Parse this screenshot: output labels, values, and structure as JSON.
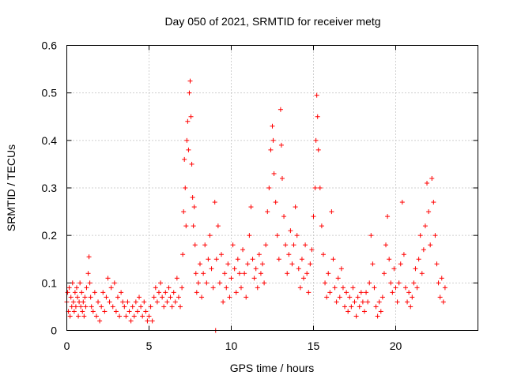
{
  "chart_data": {
    "type": "scatter",
    "title": "Day 050 of 2021, SRMTID for receiver metg",
    "xlabel": "GPS time / hours",
    "ylabel": "SRMTID / TECUs",
    "xlim": [
      0,
      25
    ],
    "ylim": [
      0,
      0.6
    ],
    "xticks": [
      0,
      5,
      10,
      15,
      20
    ],
    "xtick_labels": [
      "0",
      "5",
      "10",
      "15",
      "20"
    ],
    "yticks": [
      0,
      0.1,
      0.2,
      0.3,
      0.4,
      0.5,
      0.6
    ],
    "ytick_labels": [
      "0",
      "0.1",
      "0.2",
      "0.3",
      "0.4",
      "0.5",
      "0.6"
    ],
    "grid": true,
    "marker": "+",
    "color": "#ff0000",
    "series": [
      {
        "name": "SRMTID",
        "points": [
          [
            0.0,
            0.06
          ],
          [
            0.05,
            0.08
          ],
          [
            0.1,
            0.04
          ],
          [
            0.15,
            0.09
          ],
          [
            0.2,
            0.03
          ],
          [
            0.25,
            0.07
          ],
          [
            0.3,
            0.05
          ],
          [
            0.35,
            0.1
          ],
          [
            0.4,
            0.06
          ],
          [
            0.45,
            0.04
          ],
          [
            0.5,
            0.08
          ],
          [
            0.55,
            0.05
          ],
          [
            0.6,
            0.09
          ],
          [
            0.65,
            0.07
          ],
          [
            0.7,
            0.03
          ],
          [
            0.75,
            0.06
          ],
          [
            0.8,
            0.1
          ],
          [
            0.85,
            0.05
          ],
          [
            0.9,
            0.08
          ],
          [
            0.95,
            0.04
          ],
          [
            1.0,
            0.06
          ],
          [
            1.05,
            0.03
          ],
          [
            1.1,
            0.07
          ],
          [
            1.15,
            0.05
          ],
          [
            1.2,
            0.09
          ],
          [
            1.3,
            0.12
          ],
          [
            1.35,
            0.155
          ],
          [
            1.4,
            0.1
          ],
          [
            1.45,
            0.07
          ],
          [
            1.5,
            0.05
          ],
          [
            1.6,
            0.04
          ],
          [
            1.7,
            0.08
          ],
          [
            1.8,
            0.03
          ],
          [
            1.9,
            0.06
          ],
          [
            2.0,
            0.02
          ],
          [
            2.1,
            0.05
          ],
          [
            2.2,
            0.08
          ],
          [
            2.3,
            0.04
          ],
          [
            2.4,
            0.07
          ],
          [
            2.5,
            0.11
          ],
          [
            2.6,
            0.06
          ],
          [
            2.7,
            0.09
          ],
          [
            2.8,
            0.05
          ],
          [
            2.9,
            0.1
          ],
          [
            3.0,
            0.04
          ],
          [
            3.1,
            0.07
          ],
          [
            3.2,
            0.03
          ],
          [
            3.3,
            0.08
          ],
          [
            3.4,
            0.06
          ],
          [
            3.5,
            0.05
          ],
          [
            3.6,
            0.03
          ],
          [
            3.7,
            0.06
          ],
          [
            3.8,
            0.04
          ],
          [
            3.9,
            0.02
          ],
          [
            4.0,
            0.05
          ],
          [
            4.1,
            0.03
          ],
          [
            4.2,
            0.06
          ],
          [
            4.3,
            0.04
          ],
          [
            4.4,
            0.07
          ],
          [
            4.5,
            0.05
          ],
          [
            4.6,
            0.03
          ],
          [
            4.7,
            0.06
          ],
          [
            4.8,
            0.04
          ],
          [
            4.9,
            0.02
          ],
          [
            5.0,
            0.03
          ],
          [
            5.1,
            0.05
          ],
          [
            5.2,
            0.02
          ],
          [
            5.3,
            0.07
          ],
          [
            5.4,
            0.09
          ],
          [
            5.5,
            0.06
          ],
          [
            5.6,
            0.08
          ],
          [
            5.7,
            0.1
          ],
          [
            5.8,
            0.07
          ],
          [
            5.9,
            0.05
          ],
          [
            6.0,
            0.08
          ],
          [
            6.1,
            0.06
          ],
          [
            6.2,
            0.09
          ],
          [
            6.3,
            0.07
          ],
          [
            6.4,
            0.05
          ],
          [
            6.5,
            0.08
          ],
          [
            6.6,
            0.06
          ],
          [
            6.7,
            0.11
          ],
          [
            6.8,
            0.07
          ],
          [
            6.9,
            0.05
          ],
          [
            7.0,
            0.09
          ],
          [
            7.05,
            0.16
          ],
          [
            7.1,
            0.25
          ],
          [
            7.15,
            0.36
          ],
          [
            7.2,
            0.3
          ],
          [
            7.25,
            0.22
          ],
          [
            7.3,
            0.4
          ],
          [
            7.35,
            0.44
          ],
          [
            7.4,
            0.38
          ],
          [
            7.45,
            0.5
          ],
          [
            7.5,
            0.525
          ],
          [
            7.55,
            0.45
          ],
          [
            7.6,
            0.35
          ],
          [
            7.65,
            0.28
          ],
          [
            7.7,
            0.22
          ],
          [
            7.75,
            0.26
          ],
          [
            7.8,
            0.18
          ],
          [
            7.85,
            0.12
          ],
          [
            7.9,
            0.08
          ],
          [
            8.0,
            0.1
          ],
          [
            8.1,
            0.14
          ],
          [
            8.2,
            0.07
          ],
          [
            8.3,
            0.12
          ],
          [
            8.4,
            0.18
          ],
          [
            8.5,
            0.1
          ],
          [
            8.6,
            0.15
          ],
          [
            8.7,
            0.2
          ],
          [
            8.8,
            0.13
          ],
          [
            8.9,
            0.09
          ],
          [
            9.0,
            0.27
          ],
          [
            9.05,
            0.0
          ],
          [
            9.1,
            0.15
          ],
          [
            9.2,
            0.22
          ],
          [
            9.3,
            0.1
          ],
          [
            9.4,
            0.16
          ],
          [
            9.5,
            0.06
          ],
          [
            9.6,
            0.12
          ],
          [
            9.7,
            0.09
          ],
          [
            9.8,
            0.14
          ],
          [
            9.9,
            0.07
          ],
          [
            10.0,
            0.11
          ],
          [
            10.1,
            0.18
          ],
          [
            10.2,
            0.13
          ],
          [
            10.3,
            0.08
          ],
          [
            10.4,
            0.15
          ],
          [
            10.5,
            0.12
          ],
          [
            10.6,
            0.09
          ],
          [
            10.7,
            0.17
          ],
          [
            10.8,
            0.12
          ],
          [
            10.9,
            0.07
          ],
          [
            11.0,
            0.14
          ],
          [
            11.1,
            0.2
          ],
          [
            11.2,
            0.26
          ],
          [
            11.3,
            0.15
          ],
          [
            11.4,
            0.11
          ],
          [
            11.5,
            0.13
          ],
          [
            11.6,
            0.09
          ],
          [
            11.7,
            0.16
          ],
          [
            11.8,
            0.12
          ],
          [
            11.9,
            0.14
          ],
          [
            12.0,
            0.1
          ],
          [
            12.1,
            0.18
          ],
          [
            12.2,
            0.25
          ],
          [
            12.3,
            0.3
          ],
          [
            12.4,
            0.38
          ],
          [
            12.5,
            0.43
          ],
          [
            12.55,
            0.4
          ],
          [
            12.6,
            0.33
          ],
          [
            12.7,
            0.27
          ],
          [
            12.8,
            0.2
          ],
          [
            12.9,
            0.15
          ],
          [
            13.0,
            0.465
          ],
          [
            13.05,
            0.39
          ],
          [
            13.1,
            0.32
          ],
          [
            13.2,
            0.24
          ],
          [
            13.3,
            0.18
          ],
          [
            13.4,
            0.12
          ],
          [
            13.5,
            0.16
          ],
          [
            13.6,
            0.21
          ],
          [
            13.7,
            0.14
          ],
          [
            13.8,
            0.18
          ],
          [
            13.9,
            0.26
          ],
          [
            14.0,
            0.2
          ],
          [
            14.1,
            0.13
          ],
          [
            14.2,
            0.09
          ],
          [
            14.3,
            0.15
          ],
          [
            14.4,
            0.11
          ],
          [
            14.5,
            0.18
          ],
          [
            14.6,
            0.12
          ],
          [
            14.7,
            0.08
          ],
          [
            14.8,
            0.14
          ],
          [
            14.9,
            0.17
          ],
          [
            15.0,
            0.24
          ],
          [
            15.1,
            0.3
          ],
          [
            15.15,
            0.4
          ],
          [
            15.2,
            0.495
          ],
          [
            15.25,
            0.45
          ],
          [
            15.3,
            0.38
          ],
          [
            15.4,
            0.3
          ],
          [
            15.5,
            0.22
          ],
          [
            15.6,
            0.16
          ],
          [
            15.7,
            0.1
          ],
          [
            15.8,
            0.07
          ],
          [
            15.9,
            0.12
          ],
          [
            16.0,
            0.08
          ],
          [
            16.1,
            0.25
          ],
          [
            16.2,
            0.15
          ],
          [
            16.3,
            0.09
          ],
          [
            16.4,
            0.06
          ],
          [
            16.5,
            0.11
          ],
          [
            16.6,
            0.07
          ],
          [
            16.7,
            0.13
          ],
          [
            16.8,
            0.09
          ],
          [
            16.9,
            0.05
          ],
          [
            17.0,
            0.08
          ],
          [
            17.1,
            0.04
          ],
          [
            17.2,
            0.07
          ],
          [
            17.3,
            0.05
          ],
          [
            17.4,
            0.09
          ],
          [
            17.5,
            0.06
          ],
          [
            17.6,
            0.03
          ],
          [
            17.7,
            0.07
          ],
          [
            17.8,
            0.05
          ],
          [
            17.9,
            0.08
          ],
          [
            18.0,
            0.06
          ],
          [
            18.1,
            0.04
          ],
          [
            18.2,
            0.08
          ],
          [
            18.3,
            0.06
          ],
          [
            18.4,
            0.1
          ],
          [
            18.5,
            0.2
          ],
          [
            18.6,
            0.14
          ],
          [
            18.7,
            0.09
          ],
          [
            18.8,
            0.05
          ],
          [
            18.9,
            0.03
          ],
          [
            19.0,
            0.06
          ],
          [
            19.1,
            0.04
          ],
          [
            19.2,
            0.07
          ],
          [
            19.3,
            0.12
          ],
          [
            19.4,
            0.18
          ],
          [
            19.5,
            0.24
          ],
          [
            19.6,
            0.15
          ],
          [
            19.7,
            0.1
          ],
          [
            19.8,
            0.08
          ],
          [
            19.9,
            0.13
          ],
          [
            20.0,
            0.09
          ],
          [
            20.1,
            0.06
          ],
          [
            20.2,
            0.1
          ],
          [
            20.3,
            0.14
          ],
          [
            20.4,
            0.27
          ],
          [
            20.5,
            0.16
          ],
          [
            20.6,
            0.09
          ],
          [
            20.7,
            0.06
          ],
          [
            20.8,
            0.08
          ],
          [
            20.9,
            0.05
          ],
          [
            21.0,
            0.07
          ],
          [
            21.1,
            0.1
          ],
          [
            21.2,
            0.13
          ],
          [
            21.3,
            0.09
          ],
          [
            21.4,
            0.15
          ],
          [
            21.5,
            0.2
          ],
          [
            21.6,
            0.12
          ],
          [
            21.7,
            0.17
          ],
          [
            21.8,
            0.22
          ],
          [
            21.9,
            0.31
          ],
          [
            22.0,
            0.25
          ],
          [
            22.1,
            0.18
          ],
          [
            22.2,
            0.32
          ],
          [
            22.3,
            0.27
          ],
          [
            22.4,
            0.2
          ],
          [
            22.5,
            0.14
          ],
          [
            22.6,
            0.1
          ],
          [
            22.7,
            0.07
          ],
          [
            22.8,
            0.11
          ],
          [
            22.9,
            0.06
          ],
          [
            23.0,
            0.09
          ]
        ]
      }
    ]
  }
}
